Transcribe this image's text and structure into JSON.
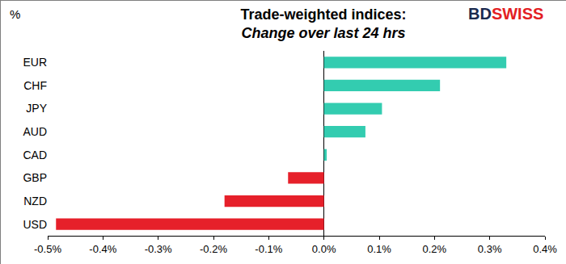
{
  "chart_data": {
    "type": "bar",
    "orientation": "horizontal",
    "title": "Trade-weighted indices:",
    "subtitle": "Change over last 24 hrs",
    "annotations": [
      "%",
      "BD",
      "SWISS"
    ],
    "categories": [
      "EUR",
      "CHF",
      "JPY",
      "AUD",
      "CAD",
      "GBP",
      "NZD",
      "USD"
    ],
    "values": [
      0.33,
      0.21,
      0.105,
      0.075,
      0.005,
      -0.065,
      -0.18,
      -0.485
    ],
    "colors": [
      "#33ccb0",
      "#33ccb0",
      "#33ccb0",
      "#33ccb0",
      "#33ccb0",
      "#e6202a",
      "#e6202a",
      "#e6202a"
    ],
    "xlim": [
      -0.5,
      0.4
    ],
    "xticks": [
      {
        "value": -0.5,
        "label": "-0.5%"
      },
      {
        "value": -0.4,
        "label": "-0.4%"
      },
      {
        "value": -0.3,
        "label": "-0.3%"
      },
      {
        "value": -0.2,
        "label": "-0.2%"
      },
      {
        "value": -0.1,
        "label": "-0.1%"
      },
      {
        "value": 0,
        "label": "0.0%"
      },
      {
        "value": 0.1,
        "label": "0.1%"
      },
      {
        "value": 0.2,
        "label": "0.2%"
      },
      {
        "value": 0.3,
        "label": "0.3%"
      },
      {
        "value": 0.4,
        "label": "0.4%"
      }
    ],
    "grid": false
  }
}
